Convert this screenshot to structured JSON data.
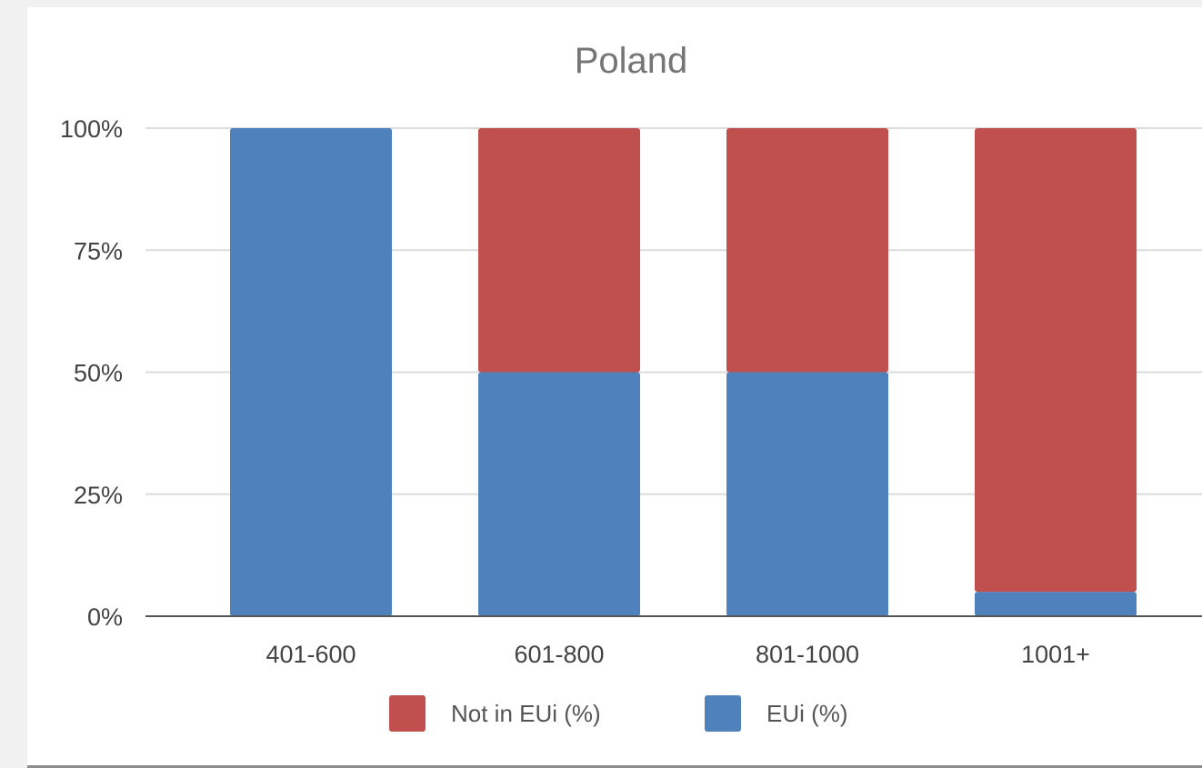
{
  "chart_data": {
    "type": "bar",
    "stacked": true,
    "normalized": true,
    "title": "Poland",
    "categories": [
      "401-600",
      "601-800",
      "801-1000",
      "1001+"
    ],
    "series": [
      {
        "name": "EUi (%)",
        "color": "#4f81bd",
        "values": [
          100,
          50,
          50,
          5
        ]
      },
      {
        "name": "Not in EUi (%)",
        "color": "#c0504d",
        "values": [
          0,
          50,
          50,
          95
        ]
      }
    ],
    "legend_order": [
      "Not in EUi (%)",
      "EUi (%)"
    ],
    "ylim": [
      0,
      100
    ],
    "yticks": [
      "0%",
      "25%",
      "50%",
      "75%",
      "100%"
    ],
    "ytick_values": [
      0,
      25,
      50,
      75,
      100
    ],
    "grid": true,
    "legend_position": "bottom"
  }
}
